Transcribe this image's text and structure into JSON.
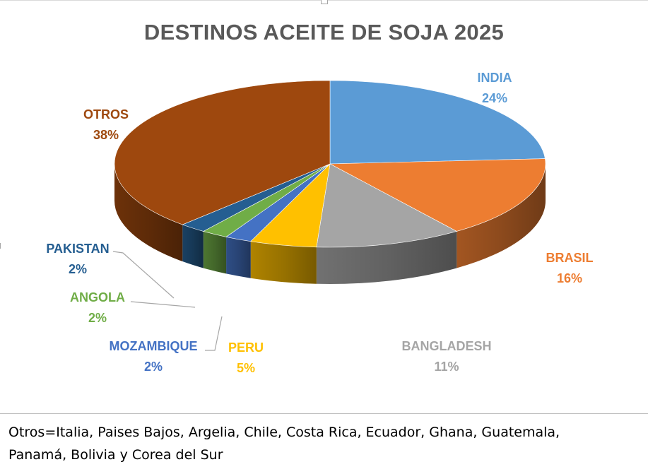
{
  "chart_data": {
    "type": "pie",
    "title": "DESTINOS ACEITE DE SOJA 2025",
    "slices": [
      {
        "label": "INDIA",
        "value": 24,
        "value_label": "24%",
        "color": "#5b9bd5"
      },
      {
        "label": "BRASIL",
        "value": 16,
        "value_label": "16%",
        "color": "#ed7d31"
      },
      {
        "label": "BANGLADESH",
        "value": 11,
        "value_label": "11%",
        "color": "#a5a5a5"
      },
      {
        "label": "PERU",
        "value": 5,
        "value_label": "5%",
        "color": "#ffc000"
      },
      {
        "label": "MOZAMBIQUE",
        "value": 2,
        "value_label": "2%",
        "color": "#4472c4"
      },
      {
        "label": "ANGOLA",
        "value": 2,
        "value_label": "2%",
        "color": "#70ad47"
      },
      {
        "label": "PAKISTAN",
        "value": 2,
        "value_label": "2%",
        "color": "#255e91"
      },
      {
        "label": "OTROS",
        "value": 38,
        "value_label": "38%",
        "color": "#9e480e"
      }
    ],
    "legend": "none",
    "style": "3d-pie"
  },
  "footnote": {
    "line1": "Otros=Italia, Paises Bajos, Argelia, Chile, Costa Rica, Ecuador, Ghana, Guatemala,",
    "line2": "Panamá, Bolivia y Corea del Sur"
  }
}
